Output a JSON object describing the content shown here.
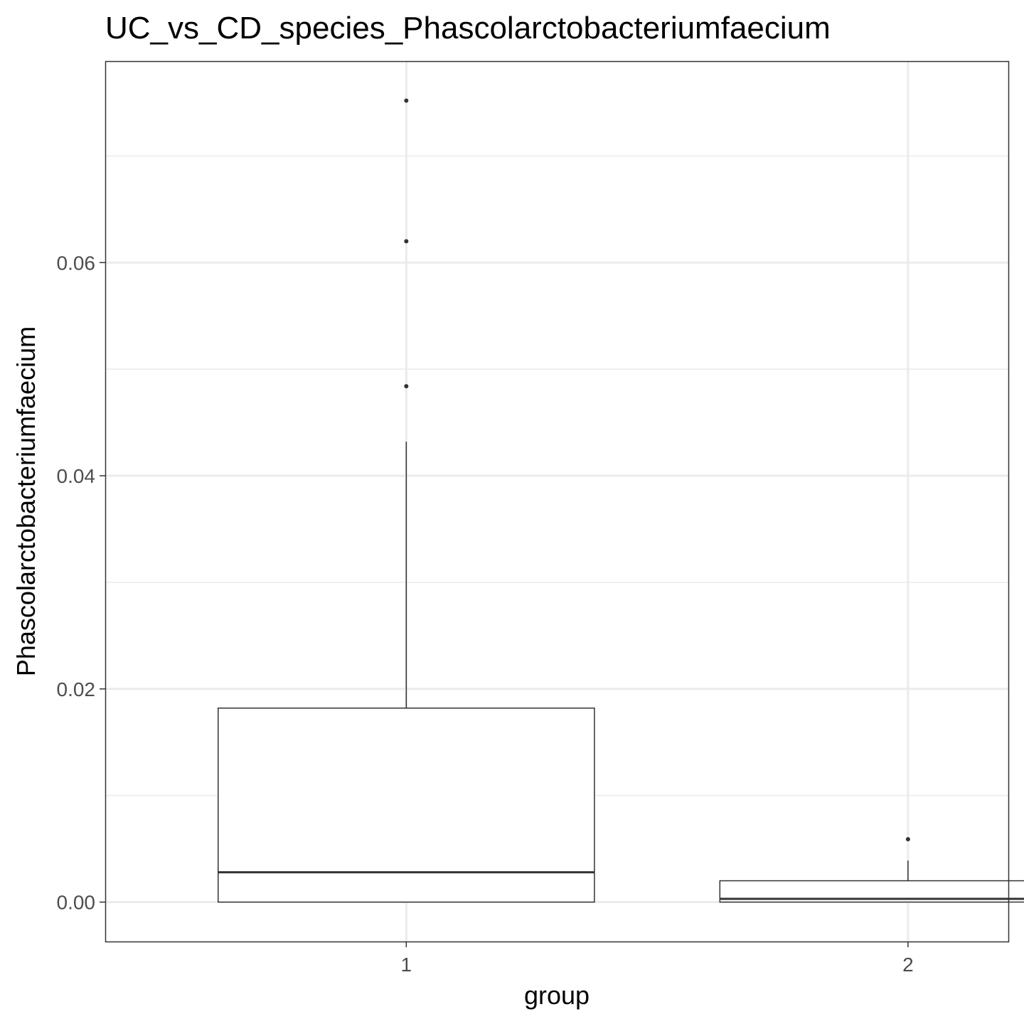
{
  "chart_data": {
    "type": "boxplot",
    "title": "UC_vs_CD_species_Phascolarctobacteriumfaecium",
    "xlabel": "group",
    "ylabel": "Phascolarctobacteriumfaecium",
    "categories": [
      "1",
      "2"
    ],
    "y_ticks": [
      "0.00",
      "0.02",
      "0.04",
      "0.06"
    ],
    "y_tick_values": [
      0,
      0.02,
      0.04,
      0.06
    ],
    "ylim": [
      -0.0037,
      0.0789
    ],
    "grid": true,
    "boxes": [
      {
        "group": "1",
        "lower_whisker": 0.0,
        "q1": 0.0,
        "median": 0.0028,
        "q3": 0.0182,
        "upper_whisker": 0.0432,
        "outliers": [
          0.0484,
          0.062,
          0.0752
        ]
      },
      {
        "group": "2",
        "lower_whisker": 0.0,
        "q1": 0.0,
        "median": 0.0003,
        "q3": 0.002,
        "upper_whisker": 0.0039,
        "outliers": [
          0.0059
        ]
      }
    ],
    "colors": {
      "box_fill": "#ffffff",
      "box_stroke": "#333333",
      "grid_major": "#ebebeb",
      "grid_minor": "#ebebeb",
      "panel_border": "#333333"
    }
  }
}
